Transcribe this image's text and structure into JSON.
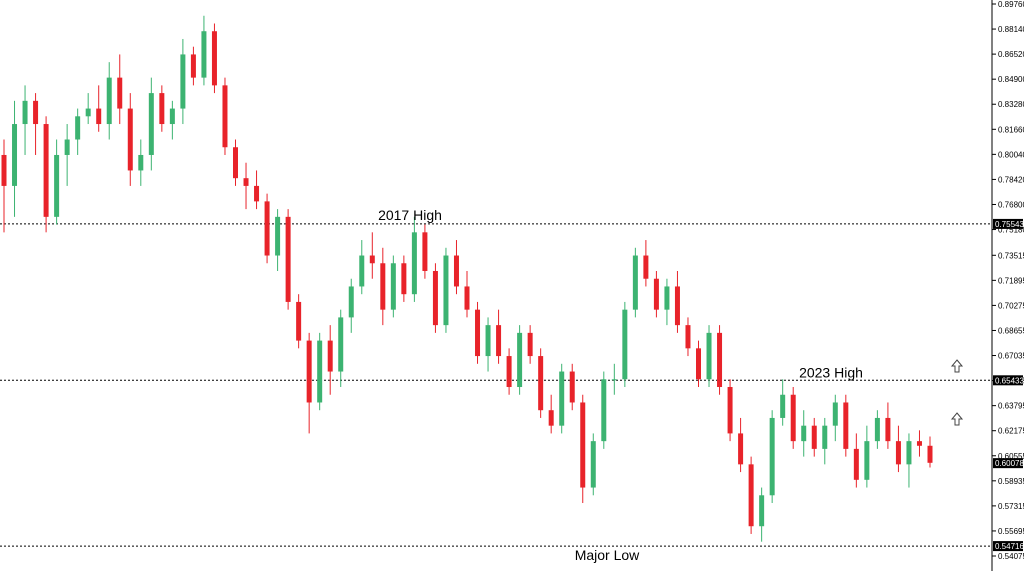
{
  "chart_data": {
    "type": "candlestick",
    "instrument_note": "",
    "y_axis": {
      "position": "right",
      "range": [
        0.54075,
        0.8976
      ],
      "tick_labels": [
        "0.89760",
        "0.88140",
        "0.86520",
        "0.84900",
        "0.83280",
        "0.81660",
        "0.80040",
        "0.78420",
        "0.76800",
        "0.75180",
        "0.73515",
        "0.71895",
        "0.70275",
        "0.68655",
        "0.67035",
        "0.65415",
        "0.63795",
        "0.62175",
        "0.60555",
        "0.58935",
        "0.57315",
        "0.55695",
        "0.54075"
      ]
    },
    "horizontal_levels": [
      {
        "value": 0.75543,
        "label": "0.75543",
        "annotation": "2017 High"
      },
      {
        "value": 0.65433,
        "label": "0.65433",
        "annotation": "2023 High"
      },
      {
        "value": 0.54716,
        "label": "0.54716",
        "annotation": "Major Low"
      }
    ],
    "current_price": {
      "value": 0.60078,
      "label": "0.60078"
    },
    "colors": {
      "up": "#3cb371",
      "down": "#e8232a",
      "level_line": "#000000",
      "price_box": "#000000"
    },
    "candles": [
      [
        0.8,
        0.81,
        0.75,
        0.78
      ],
      [
        0.78,
        0.835,
        0.76,
        0.82
      ],
      [
        0.82,
        0.845,
        0.8,
        0.835
      ],
      [
        0.835,
        0.84,
        0.8,
        0.82
      ],
      [
        0.82,
        0.825,
        0.75,
        0.76
      ],
      [
        0.76,
        0.81,
        0.755,
        0.8
      ],
      [
        0.8,
        0.82,
        0.78,
        0.81
      ],
      [
        0.81,
        0.83,
        0.8,
        0.825
      ],
      [
        0.825,
        0.84,
        0.82,
        0.83
      ],
      [
        0.83,
        0.845,
        0.815,
        0.82
      ],
      [
        0.82,
        0.86,
        0.81,
        0.85
      ],
      [
        0.85,
        0.865,
        0.82,
        0.83
      ],
      [
        0.83,
        0.84,
        0.78,
        0.79
      ],
      [
        0.79,
        0.81,
        0.78,
        0.8
      ],
      [
        0.8,
        0.85,
        0.79,
        0.84
      ],
      [
        0.84,
        0.845,
        0.815,
        0.82
      ],
      [
        0.82,
        0.835,
        0.81,
        0.83
      ],
      [
        0.83,
        0.875,
        0.82,
        0.865
      ],
      [
        0.865,
        0.87,
        0.845,
        0.85
      ],
      [
        0.85,
        0.89,
        0.845,
        0.88
      ],
      [
        0.88,
        0.885,
        0.84,
        0.845
      ],
      [
        0.845,
        0.85,
        0.8,
        0.805
      ],
      [
        0.805,
        0.81,
        0.78,
        0.785
      ],
      [
        0.785,
        0.795,
        0.765,
        0.78
      ],
      [
        0.78,
        0.79,
        0.765,
        0.77
      ],
      [
        0.77,
        0.775,
        0.73,
        0.735
      ],
      [
        0.735,
        0.765,
        0.725,
        0.76
      ],
      [
        0.76,
        0.765,
        0.7,
        0.705
      ],
      [
        0.705,
        0.71,
        0.675,
        0.68
      ],
      [
        0.68,
        0.685,
        0.62,
        0.64
      ],
      [
        0.64,
        0.685,
        0.635,
        0.68
      ],
      [
        0.68,
        0.69,
        0.645,
        0.66
      ],
      [
        0.66,
        0.7,
        0.65,
        0.695
      ],
      [
        0.695,
        0.72,
        0.685,
        0.715
      ],
      [
        0.715,
        0.745,
        0.71,
        0.735
      ],
      [
        0.735,
        0.75,
        0.72,
        0.73
      ],
      [
        0.73,
        0.74,
        0.69,
        0.7
      ],
      [
        0.7,
        0.735,
        0.695,
        0.73
      ],
      [
        0.73,
        0.735,
        0.705,
        0.71
      ],
      [
        0.71,
        0.76,
        0.705,
        0.75
      ],
      [
        0.75,
        0.755,
        0.72,
        0.725
      ],
      [
        0.725,
        0.73,
        0.685,
        0.69
      ],
      [
        0.69,
        0.74,
        0.685,
        0.735
      ],
      [
        0.735,
        0.745,
        0.71,
        0.715
      ],
      [
        0.715,
        0.725,
        0.695,
        0.7
      ],
      [
        0.7,
        0.705,
        0.665,
        0.67
      ],
      [
        0.67,
        0.695,
        0.66,
        0.69
      ],
      [
        0.69,
        0.7,
        0.665,
        0.67
      ],
      [
        0.67,
        0.675,
        0.645,
        0.65
      ],
      [
        0.65,
        0.69,
        0.645,
        0.685
      ],
      [
        0.685,
        0.69,
        0.665,
        0.67
      ],
      [
        0.67,
        0.675,
        0.63,
        0.635
      ],
      [
        0.635,
        0.645,
        0.62,
        0.625
      ],
      [
        0.625,
        0.665,
        0.62,
        0.66
      ],
      [
        0.66,
        0.665,
        0.635,
        0.64
      ],
      [
        0.64,
        0.645,
        0.575,
        0.585
      ],
      [
        0.585,
        0.62,
        0.58,
        0.615
      ],
      [
        0.615,
        0.66,
        0.61,
        0.655
      ],
      [
        0.655,
        0.665,
        0.645,
        0.655
      ],
      [
        0.655,
        0.705,
        0.65,
        0.7
      ],
      [
        0.7,
        0.74,
        0.695,
        0.735
      ],
      [
        0.735,
        0.745,
        0.715,
        0.72
      ],
      [
        0.72,
        0.725,
        0.695,
        0.7
      ],
      [
        0.7,
        0.72,
        0.69,
        0.715
      ],
      [
        0.715,
        0.725,
        0.685,
        0.69
      ],
      [
        0.69,
        0.695,
        0.67,
        0.675
      ],
      [
        0.675,
        0.68,
        0.65,
        0.655
      ],
      [
        0.655,
        0.69,
        0.65,
        0.685
      ],
      [
        0.685,
        0.69,
        0.645,
        0.65
      ],
      [
        0.65,
        0.655,
        0.615,
        0.62
      ],
      [
        0.62,
        0.63,
        0.595,
        0.6
      ],
      [
        0.6,
        0.605,
        0.555,
        0.56
      ],
      [
        0.56,
        0.585,
        0.55,
        0.58
      ],
      [
        0.58,
        0.635,
        0.575,
        0.63
      ],
      [
        0.63,
        0.655,
        0.625,
        0.645
      ],
      [
        0.645,
        0.65,
        0.61,
        0.615
      ],
      [
        0.615,
        0.635,
        0.605,
        0.625
      ],
      [
        0.625,
        0.63,
        0.605,
        0.61
      ],
      [
        0.61,
        0.63,
        0.6,
        0.625
      ],
      [
        0.625,
        0.645,
        0.615,
        0.64
      ],
      [
        0.64,
        0.645,
        0.605,
        0.61
      ],
      [
        0.61,
        0.62,
        0.585,
        0.59
      ],
      [
        0.59,
        0.625,
        0.585,
        0.615
      ],
      [
        0.615,
        0.635,
        0.61,
        0.63
      ],
      [
        0.63,
        0.64,
        0.61,
        0.615
      ],
      [
        0.615,
        0.625,
        0.595,
        0.6
      ],
      [
        0.6,
        0.62,
        0.585,
        0.615
      ],
      [
        0.615,
        0.622,
        0.605,
        0.612
      ],
      [
        0.612,
        0.618,
        0.598,
        0.601
      ]
    ]
  },
  "annotation_arrows": [
    "up-arrow-icon",
    "up-arrow-icon"
  ]
}
